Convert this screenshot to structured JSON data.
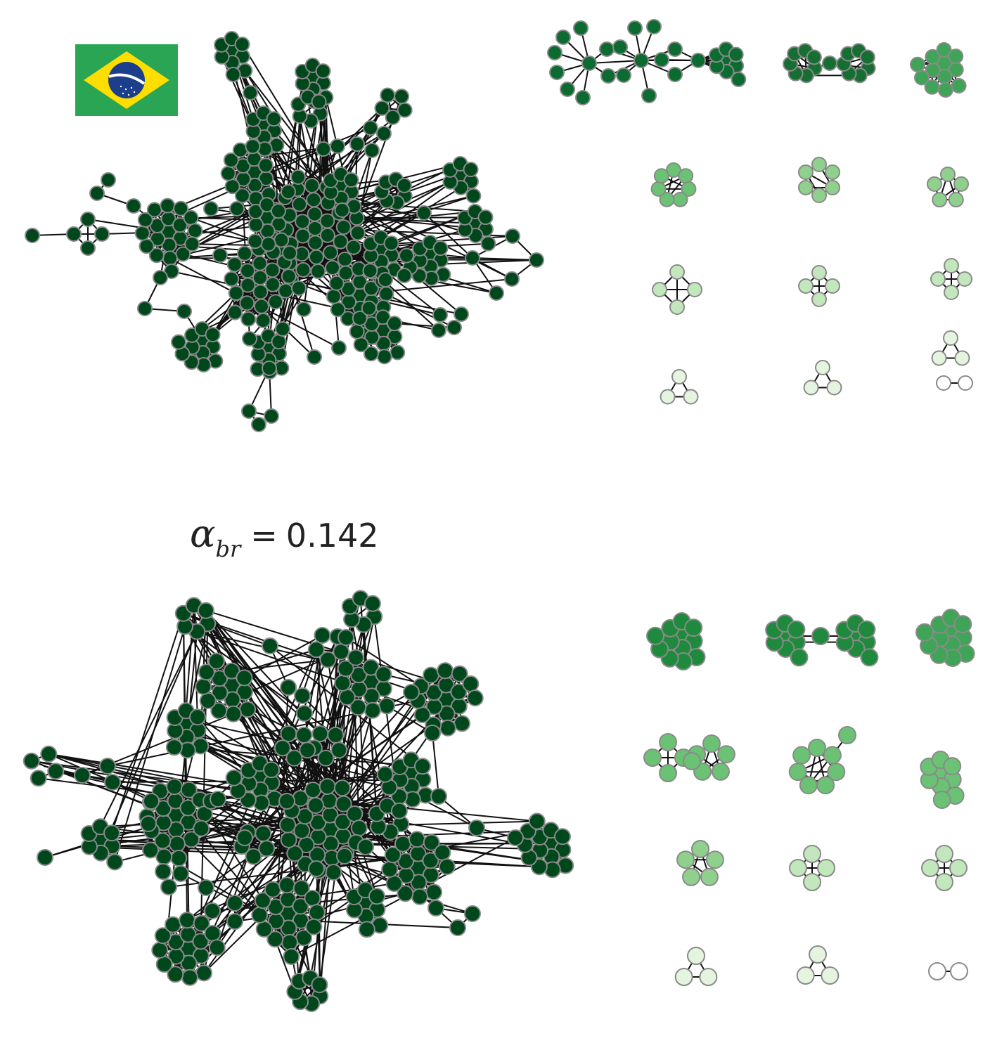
{
  "colors": {
    "core": "#00471c",
    "level1": "#2e9448",
    "level2": "#3fa457",
    "level3": "#6bc274",
    "level4": "#8fd08d",
    "level5": "#c3e7bd",
    "level6": "#e4f4df",
    "level7": "#ffffff",
    "flag_green": "#29a554",
    "flag_yellow": "#fedd00",
    "flag_blue": "#1b3f8b"
  },
  "flag": {
    "icon": "brazil-flag-icon"
  },
  "annotation": {
    "symbol": "α",
    "subscript": "br",
    "equals": "=",
    "value": "0.142"
  }
}
